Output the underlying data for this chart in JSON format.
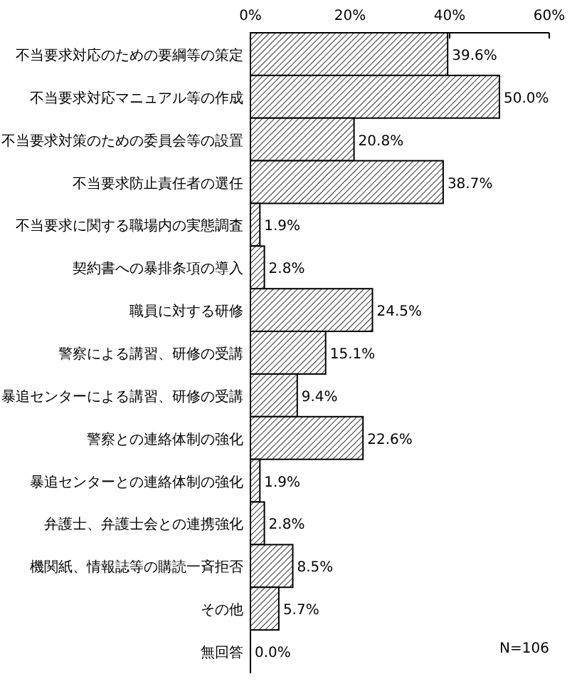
{
  "chart_data": {
    "type": "bar",
    "orientation": "horizontal",
    "categories": [
      "不当要求対応のための要綱等の策定",
      "不当要求対応マニュアル等の作成",
      "不当要求対策のための委員会等の設置",
      "不当要求防止責任者の選任",
      "不当要求に関する職場内の実態調査",
      "契約書への暴排条項の導入",
      "職員に対する研修",
      "警察による講習、研修の受講",
      "暴追センターによる講習、研修の受講",
      "警察との連絡体制の強化",
      "暴追センターとの連絡体制の強化",
      "弁護士、弁護士会との連携強化",
      "機関紙、情報誌等の購読一斉拒否",
      "その他",
      "無回答"
    ],
    "values": [
      39.6,
      50.0,
      20.8,
      38.7,
      1.9,
      2.8,
      24.5,
      15.1,
      9.4,
      22.6,
      1.9,
      2.8,
      8.5,
      5.7,
      0.0
    ],
    "value_labels": [
      "39.6%",
      "50.0%",
      "20.8%",
      "38.7%",
      "1.9%",
      "2.8%",
      "24.5%",
      "15.1%",
      "9.4%",
      "22.6%",
      "1.9%",
      "2.8%",
      "8.5%",
      "5.7%",
      "0.0%"
    ],
    "color": "#000000",
    "xlim": [
      0,
      60
    ],
    "xticks": [
      {
        "value": 0,
        "label": "0%"
      },
      {
        "value": 20,
        "label": "20%"
      },
      {
        "value": 40,
        "label": "40%"
      },
      {
        "value": 60,
        "label": "60%"
      }
    ],
    "annotations": [
      "N=106"
    ]
  }
}
